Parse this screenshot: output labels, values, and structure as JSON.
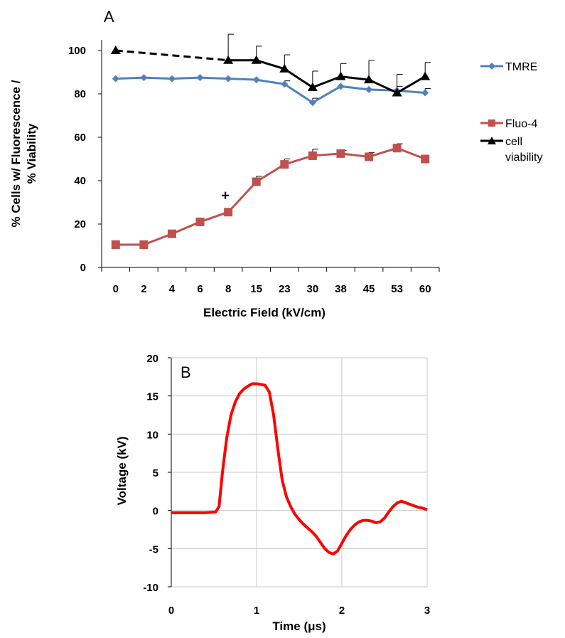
{
  "chart_data": [
    {
      "type": "line",
      "panel_label": "A",
      "xlabel": "Electric Field (kV/cm)",
      "ylabel_line1": "% Cells w/ Fluorescence /",
      "ylabel_line2": "% Viability",
      "categories": [
        "0",
        "2",
        "4",
        "6",
        "8",
        "15",
        "23",
        "30",
        "38",
        "45",
        "53",
        "60"
      ],
      "ylim": [
        0,
        100
      ],
      "yticks": [
        "0",
        "20",
        "40",
        "60",
        "80",
        "100"
      ],
      "grid": false,
      "legend_position": "right",
      "annotation": "+",
      "annotation_category": "8",
      "annotation_y": 33,
      "series": [
        {
          "name": "TMRE",
          "color": "#4f81bd",
          "marker": "diamond",
          "values": [
            87,
            87.5,
            87,
            87.5,
            87,
            86.5,
            84.5,
            76,
            83.5,
            82,
            81.5,
            80.5
          ],
          "error": [
            0,
            0,
            0,
            0,
            0,
            0,
            1.5,
            2,
            0,
            0,
            2,
            2
          ]
        },
        {
          "name": "Fluo-4",
          "color": "#c0504d",
          "marker": "square",
          "values": [
            10.5,
            10.5,
            15.5,
            21,
            25.5,
            39.5,
            47.5,
            51.5,
            52.5,
            51,
            55,
            50
          ],
          "error": [
            0,
            0,
            0,
            0,
            0,
            2.5,
            2.5,
            3,
            1.5,
            2,
            2,
            0
          ]
        },
        {
          "name": "cell viability",
          "legend_line1": "cell",
          "legend_line2": "viability",
          "color": "#000000",
          "marker": "triangle",
          "values": [
            100,
            null,
            null,
            null,
            95.5,
            95.5,
            91.5,
            83,
            88,
            86.5,
            80.5,
            88
          ],
          "error": [
            0,
            0,
            0,
            0,
            12,
            6.5,
            6.5,
            7.5,
            6,
            9,
            8.5,
            6.5
          ],
          "dashed_from": "0",
          "dashed_to": "8"
        }
      ]
    },
    {
      "type": "line",
      "panel_label": "B",
      "xlabel": "Time (μs)",
      "ylabel": "Voltage (kV)",
      "xlim": [
        0,
        3
      ],
      "ylim": [
        -10,
        20
      ],
      "xticks": [
        "0",
        "1",
        "2",
        "3"
      ],
      "yticks": [
        "-10",
        "-5",
        "0",
        "5",
        "10",
        "15",
        "20"
      ],
      "grid": true,
      "series": [
        {
          "color": "#ff0000",
          "x": [
            0,
            0.2,
            0.4,
            0.52,
            0.56,
            0.6,
            0.65,
            0.7,
            0.75,
            0.8,
            0.85,
            0.9,
            0.95,
            1.0,
            1.05,
            1.1,
            1.15,
            1.2,
            1.25,
            1.3,
            1.35,
            1.4,
            1.45,
            1.5,
            1.55,
            1.6,
            1.65,
            1.7,
            1.75,
            1.8,
            1.85,
            1.9,
            1.95,
            2.0,
            2.05,
            2.1,
            2.15,
            2.2,
            2.25,
            2.3,
            2.35,
            2.4,
            2.45,
            2.5,
            2.55,
            2.6,
            2.65,
            2.7,
            2.75,
            2.8,
            2.85,
            2.9,
            2.95,
            3.0
          ],
          "y": [
            -0.3,
            -0.3,
            -0.3,
            -0.2,
            0.5,
            5.0,
            9.5,
            12.5,
            14.2,
            15.3,
            15.9,
            16.3,
            16.6,
            16.6,
            16.5,
            16.4,
            15.5,
            12.5,
            8.0,
            4.0,
            1.8,
            0.5,
            -0.5,
            -1.2,
            -1.8,
            -2.3,
            -2.8,
            -3.4,
            -4.2,
            -5.0,
            -5.5,
            -5.7,
            -5.3,
            -4.3,
            -3.3,
            -2.5,
            -1.9,
            -1.5,
            -1.3,
            -1.3,
            -1.4,
            -1.6,
            -1.5,
            -1.0,
            -0.2,
            0.5,
            1.0,
            1.2,
            1.0,
            0.8,
            0.6,
            0.4,
            0.3,
            0.1
          ]
        }
      ]
    }
  ]
}
